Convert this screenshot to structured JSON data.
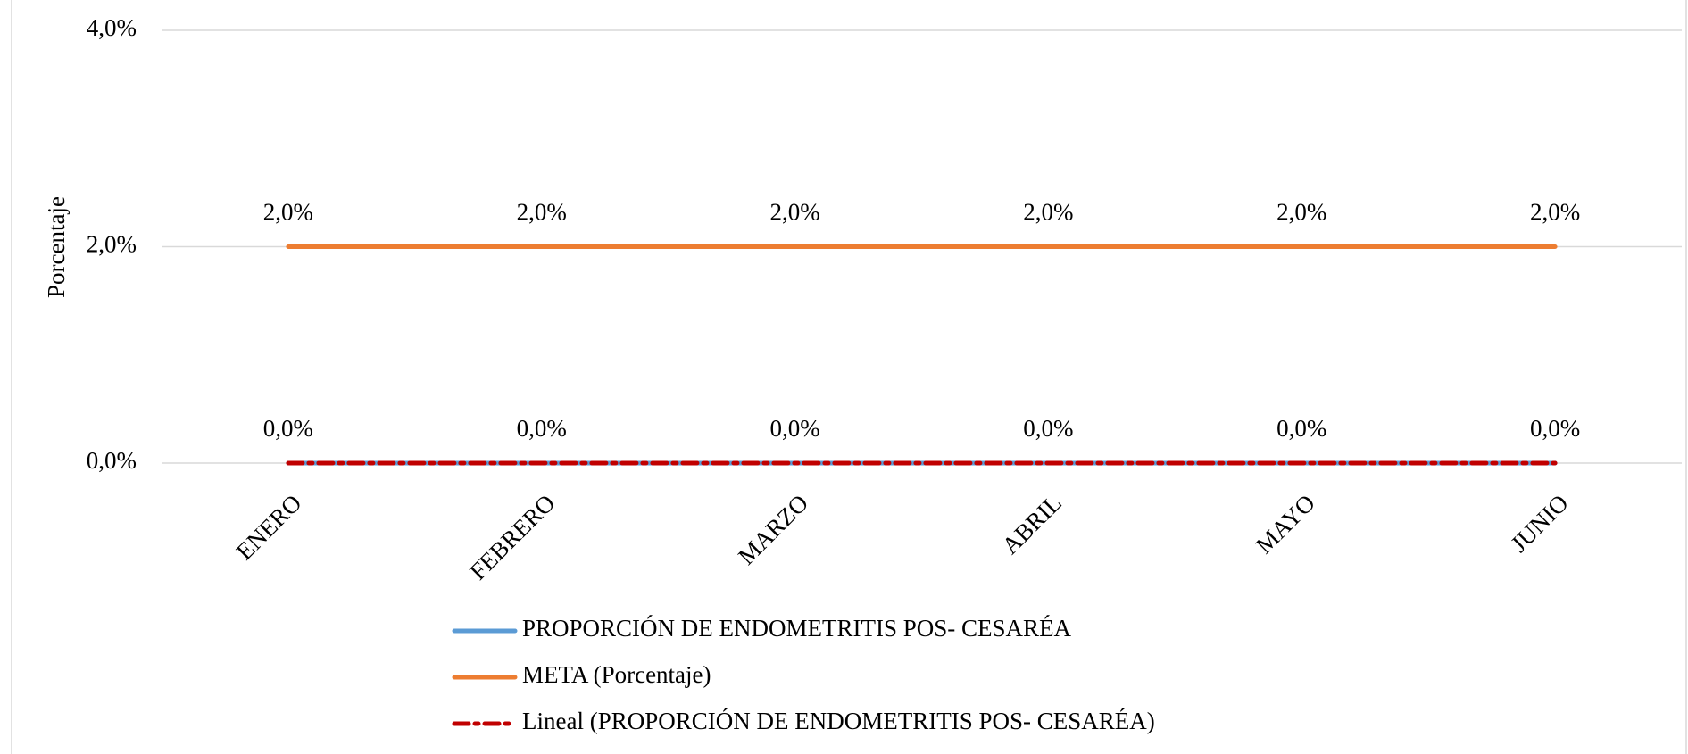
{
  "chart_data": {
    "type": "line",
    "y_label": "Porcentaje",
    "categories": [
      "ENERO",
      "FEBRERO",
      "MARZO",
      "ABRIL",
      "MAYO",
      "JUNIO"
    ],
    "series": [
      {
        "name": "PROPORCIÓN DE ENDOMETRITIS POS- CESARÉA",
        "color": "#5b9bd5",
        "linestyle": "solid",
        "values": [
          0,
          0,
          0,
          0,
          0,
          0
        ],
        "value_labels": [
          "0,0%",
          "0,0%",
          "0,0%",
          "0,0%",
          "0,0%",
          "0,0%"
        ]
      },
      {
        "name": "META (Porcentaje)",
        "color": "#ed7d31",
        "linestyle": "solid",
        "values": [
          2,
          2,
          2,
          2,
          2,
          2
        ],
        "value_labels": [
          "2,0%",
          "2,0%",
          "2,0%",
          "2,0%",
          "2,0%",
          "2,0%"
        ]
      },
      {
        "name": "Lineal (PROPORCIÓN DE ENDOMETRITIS POS- CESARÉA)",
        "color": "#c00000",
        "linestyle": "dashdot",
        "values": [
          0,
          0,
          0,
          0,
          0,
          0
        ]
      }
    ],
    "ylim": [
      0,
      4
    ],
    "yticks": [
      {
        "value": 0,
        "label": "0,0%"
      },
      {
        "value": 2,
        "label": "2,0%"
      },
      {
        "value": 4,
        "label": "4,0%"
      }
    ],
    "grid": true,
    "legend": "bottom"
  }
}
